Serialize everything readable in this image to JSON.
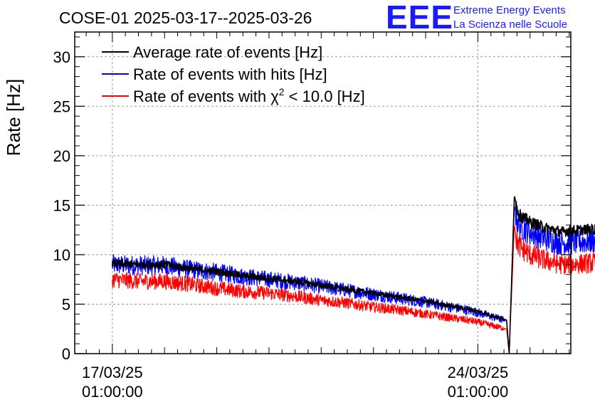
{
  "chart_data": {
    "type": "line",
    "title": "COSE-01 2025-03-17--2025-03-26",
    "ylabel": "Rate [Hz]",
    "xlabel": "",
    "ylim": [
      0,
      32.5
    ],
    "yticks": [
      0,
      5,
      10,
      15,
      20,
      25,
      30
    ],
    "xlim_days": [
      -0.72,
      8.78
    ],
    "x_unit": "days since 17/03/25 01:00:00",
    "x_ticks": [
      {
        "day": 0,
        "date": "17/03/25",
        "time": "01:00:00"
      },
      {
        "day": 7,
        "date": "24/03/25",
        "time": "01:00:00"
      }
    ],
    "grid": true,
    "legend_position": "top-left",
    "x": [
      0,
      0.5,
      1,
      1.5,
      2,
      2.5,
      3,
      3.5,
      4,
      4.5,
      5,
      5.5,
      6,
      6.5,
      6.9,
      7.3,
      7.55,
      7.6,
      7.7,
      7.75,
      7.8,
      8.0,
      8.3,
      8.6,
      8.7,
      9.3
    ],
    "series": [
      {
        "name": "Average rate of events [Hz]",
        "color": "#000000",
        "values": [
          9.1,
          9.0,
          9.0,
          8.6,
          8.3,
          7.9,
          7.6,
          7.3,
          6.9,
          6.5,
          6.1,
          5.7,
          5.3,
          4.8,
          4.4,
          3.8,
          3.4,
          0.0,
          16.0,
          14.6,
          14.0,
          13.3,
          12.7,
          12.3,
          12.4,
          12.6
        ]
      },
      {
        "name": "Rate of events with hits [Hz]",
        "color": "#0000ff",
        "values": [
          9.0,
          8.9,
          8.9,
          8.5,
          8.2,
          7.8,
          7.5,
          7.2,
          6.8,
          6.4,
          6.0,
          5.6,
          5.2,
          4.7,
          4.3,
          3.7,
          3.3,
          0.0,
          15.0,
          13.6,
          13.0,
          12.3,
          11.6,
          11.2,
          11.2,
          11.4
        ]
      },
      {
        "name": "Rate of events with χ² < 10.0 [Hz]",
        "color": "#ff0000",
        "values": [
          7.5,
          7.3,
          7.3,
          7.0,
          6.6,
          6.3,
          6.1,
          5.8,
          5.4,
          5.1,
          4.7,
          4.4,
          4.0,
          3.6,
          3.3,
          2.8,
          2.5,
          0.0,
          13.0,
          11.3,
          10.8,
          10.0,
          9.4,
          9.0,
          9.0,
          9.2
        ]
      }
    ],
    "legend": [
      {
        "label_main": "Average rate of events [Hz]",
        "label_sup": "",
        "label_tail": "",
        "color": "#000000"
      },
      {
        "label_main": "Rate of events with hits [Hz]",
        "label_sup": "",
        "label_tail": "",
        "color": "#0000ff"
      },
      {
        "label_main": "Rate of events with χ",
        "label_sup": "2",
        "label_tail": " < 10.0 [Hz]",
        "color": "#ff0000"
      }
    ]
  },
  "logo": {
    "mark": "EEE",
    "line1": "Extreme Energy Events",
    "line2": "La Scienza nelle Scuole",
    "color": "#1a1aff"
  }
}
